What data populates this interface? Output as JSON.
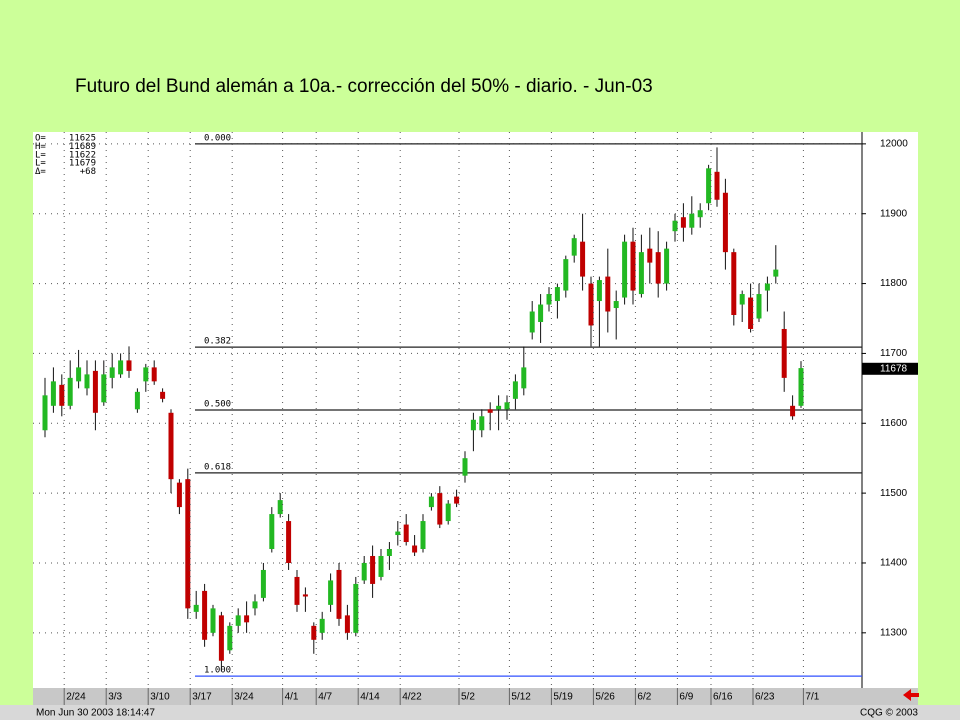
{
  "chart_data": {
    "type": "candlestick",
    "title": "Futuro del Bund alemán a 10a.- corrección del 50% -  diario. - Jun-03",
    "categories": [
      null,
      null,
      null,
      "2/24",
      null,
      null,
      null,
      null,
      "3/3",
      null,
      null,
      null,
      null,
      "3/10",
      null,
      null,
      null,
      null,
      "3/17",
      null,
      null,
      null,
      null,
      "3/24",
      null,
      null,
      null,
      null,
      null,
      "4/1",
      null,
      null,
      null,
      "4/7",
      null,
      null,
      null,
      null,
      "4/14",
      null,
      null,
      null,
      null,
      "4/22",
      null,
      null,
      null,
      null,
      null,
      null,
      "5/2",
      null,
      null,
      null,
      null,
      null,
      "5/12",
      null,
      null,
      null,
      null,
      "5/19",
      null,
      null,
      null,
      null,
      "5/26",
      null,
      null,
      null,
      null,
      "6/2",
      null,
      null,
      null,
      null,
      "6/9",
      null,
      null,
      null,
      "6/16",
      null,
      null,
      null,
      null,
      "6/23",
      null,
      null,
      null,
      null,
      null,
      "7/1"
    ],
    "open": [
      11590,
      11625,
      11655,
      11625,
      11660,
      11650,
      11675,
      11630,
      11665,
      11670,
      11690,
      11620,
      11660,
      11680,
      11645,
      11615,
      11515,
      11520,
      11330,
      11360,
      11300,
      11325,
      11275,
      11310,
      11325,
      11335,
      11350,
      11420,
      11470,
      11460,
      11380,
      11355,
      11310,
      11300,
      11340,
      11390,
      11325,
      11300,
      11375,
      11410,
      11380,
      11410,
      11440,
      11455,
      11425,
      11420,
      11480,
      11500,
      11460,
      11495,
      11525,
      11590,
      11590,
      11620,
      11620,
      11620,
      11635,
      11650,
      11730,
      11745,
      11770,
      11775,
      11790,
      11840,
      11860,
      11800,
      11775,
      11810,
      11765,
      11780,
      11860,
      11785,
      11850,
      11845,
      11800,
      11875,
      11895,
      11880,
      11895,
      11915,
      11960,
      11930,
      11845,
      11770,
      11780,
      11750,
      11790,
      11810,
      11735,
      11625,
      11625,
      null
    ],
    "high": [
      11665,
      11680,
      11670,
      11690,
      11705,
      11690,
      11690,
      11690,
      11700,
      11700,
      11710,
      11650,
      11685,
      11690,
      11650,
      11620,
      11520,
      11535,
      11360,
      11370,
      11340,
      11330,
      11315,
      11335,
      11345,
      11355,
      11400,
      11480,
      11500,
      11470,
      11390,
      11365,
      11315,
      11330,
      11385,
      11400,
      11340,
      11380,
      11410,
      11425,
      11420,
      11430,
      11460,
      11470,
      11440,
      11470,
      11500,
      11510,
      11490,
      11505,
      11560,
      11615,
      11620,
      11630,
      11640,
      11640,
      11670,
      11710,
      11775,
      11785,
      11795,
      11800,
      11840,
      11870,
      11900,
      11810,
      11810,
      11850,
      11790,
      11870,
      11880,
      11870,
      11880,
      11875,
      11860,
      11900,
      11915,
      11925,
      11915,
      11970,
      11995,
      11950,
      11850,
      11790,
      11800,
      11800,
      11810,
      11855,
      11760,
      11640,
      11689,
      null
    ],
    "low": [
      11580,
      11615,
      11610,
      11620,
      11650,
      11640,
      11590,
      11625,
      11650,
      11665,
      11665,
      11615,
      11645,
      11655,
      11630,
      11500,
      11470,
      11320,
      11320,
      11280,
      11295,
      11245,
      11270,
      11300,
      11300,
      11325,
      11345,
      11415,
      11465,
      11390,
      11330,
      11330,
      11270,
      11290,
      11330,
      11310,
      11290,
      11295,
      11370,
      11350,
      11375,
      11390,
      11425,
      11425,
      11410,
      11415,
      11475,
      11450,
      11455,
      11480,
      11515,
      11560,
      11580,
      11590,
      11590,
      11605,
      11620,
      11640,
      11720,
      11715,
      11760,
      11750,
      11780,
      11830,
      11790,
      11710,
      11710,
      11730,
      11720,
      11770,
      11770,
      11780,
      11800,
      11780,
      11790,
      11860,
      11860,
      11870,
      11880,
      11905,
      11910,
      11820,
      11740,
      11745,
      11730,
      11745,
      11760,
      11800,
      11645,
      11605,
      11622,
      null
    ],
    "close": [
      11640,
      11660,
      11625,
      11665,
      11680,
      11670,
      11615,
      11670,
      11680,
      11690,
      11675,
      11645,
      11680,
      11660,
      11635,
      11520,
      11480,
      11335,
      11340,
      11290,
      11335,
      11260,
      11310,
      11325,
      11315,
      11345,
      11390,
      11470,
      11490,
      11400,
      11340,
      11352,
      11290,
      11320,
      11375,
      11320,
      11300,
      11370,
      11400,
      11370,
      11410,
      11420,
      11445,
      11430,
      11415,
      11460,
      11495,
      11455,
      11485,
      11485,
      11550,
      11605,
      11610,
      11615,
      11625,
      11630,
      11660,
      11680,
      11760,
      11770,
      11785,
      11795,
      11835,
      11865,
      11810,
      11740,
      11805,
      11760,
      11775,
      11860,
      11790,
      11845,
      11830,
      11800,
      11850,
      11890,
      11880,
      11900,
      11905,
      11965,
      11920,
      11845,
      11755,
      11785,
      11735,
      11785,
      11800,
      11820,
      11665,
      11610,
      11679,
      null
    ],
    "up_color": "#22b822",
    "down_color": "#c00000",
    "ylim": [
      11221,
      12017
    ],
    "yticks": [
      11300,
      11400,
      11500,
      11600,
      11700,
      11800,
      11900,
      12000
    ],
    "grid": true,
    "fib_levels": [
      {
        "label": "0.000",
        "value": 12000
      },
      {
        "label": "0.382",
        "value": 11709
      },
      {
        "label": "0.500",
        "value": 11619
      },
      {
        "label": "0.618",
        "value": 11529
      },
      {
        "label": "1.000",
        "value": 11238
      }
    ],
    "last_price": 11678,
    "info": [
      {
        "label": "O=",
        "value": "11625"
      },
      {
        "label": "H=",
        "value": "11689"
      },
      {
        "label": "L=",
        "value": "11622"
      },
      {
        "label": "L=",
        "value": "11679"
      },
      {
        "label": "Δ=",
        "value": "+68"
      }
    ],
    "timestamp": "Mon Jun 30 2003 18:14:47",
    "copyright": "CQG © 2003"
  }
}
